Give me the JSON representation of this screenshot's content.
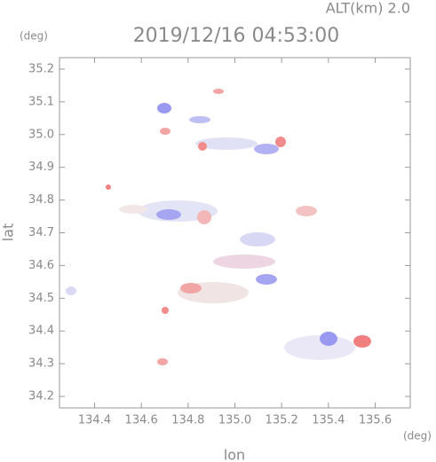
{
  "chart_data": {
    "type": "radar-map",
    "title": "2019/12/16 04:53:00",
    "altitude_label": "ALT(km) 2.0",
    "x_label": "lon",
    "y_label": "lat",
    "x_unit": "(deg)",
    "y_unit": "(deg)",
    "xlim": [
      134.25,
      135.75
    ],
    "ylim": [
      34.165,
      35.235
    ],
    "xticks": [
      134.4,
      134.6,
      134.8,
      {
        "value": 135.0,
        "label": "135.0"
      },
      135.2,
      135.4,
      135.6
    ],
    "yticks": [
      34.2,
      34.3,
      34.4,
      34.5,
      34.6,
      34.7,
      34.8,
      34.9,
      {
        "value": 35.0,
        "label": "35.0"
      },
      35.1,
      35.2
    ]
  }
}
